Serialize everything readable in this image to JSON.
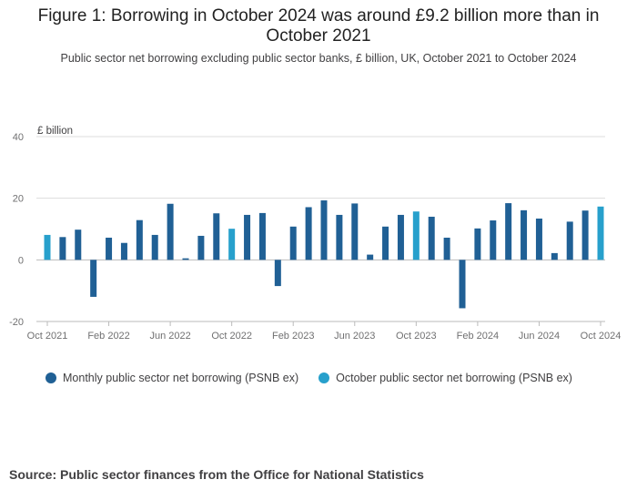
{
  "title": "Figure 1: Borrowing in October 2024 was around £9.2 billion more than in October 2021",
  "subtitle": "Public sector net borrowing excluding public sector banks, £ billion, UK, October 2021 to October 2024",
  "source": "Source: Public sector finances from the Office for National Statistics",
  "colors": {
    "monthly": "#206095",
    "october": "#27a0cc",
    "grid": "#dddddd",
    "axis": "#bbbbbb"
  },
  "chart_data": {
    "type": "bar",
    "ylabel": "£ billion",
    "ylim": [
      -20,
      40
    ],
    "yticks": [
      "-20",
      "0",
      "20",
      "40"
    ],
    "xticks": [
      {
        "label": "Oct 2021",
        "index": 0
      },
      {
        "label": "Feb 2022",
        "index": 4
      },
      {
        "label": "Jun 2022",
        "index": 8
      },
      {
        "label": "Oct 2022",
        "index": 12
      },
      {
        "label": "Feb 2023",
        "index": 16
      },
      {
        "label": "Jun 2023",
        "index": 20
      },
      {
        "label": "Oct 2023",
        "index": 24
      },
      {
        "label": "Feb 2024",
        "index": 28
      },
      {
        "label": "Jun 2024",
        "index": 32
      },
      {
        "label": "Oct 2024",
        "index": 36
      }
    ],
    "categories": [
      "Oct 2021",
      "Nov 2021",
      "Dec 2021",
      "Jan 2022",
      "Feb 2022",
      "Mar 2022",
      "Apr 2022",
      "May 2022",
      "Jun 2022",
      "Jul 2022",
      "Aug 2022",
      "Sep 2022",
      "Oct 2022",
      "Nov 2022",
      "Dec 2022",
      "Jan 2023",
      "Feb 2023",
      "Mar 2023",
      "Apr 2023",
      "May 2023",
      "Jun 2023",
      "Jul 2023",
      "Aug 2023",
      "Sep 2023",
      "Oct 2023",
      "Nov 2023",
      "Dec 2023",
      "Jan 2024",
      "Feb 2024",
      "Mar 2024",
      "Apr 2024",
      "May 2024",
      "Jun 2024",
      "Jul 2024",
      "Aug 2024",
      "Sep 2024",
      "Oct 2024"
    ],
    "series": [
      {
        "name": "Monthly public sector net borrowing (PSNB ex)"
      },
      {
        "name": "October public sector net borrowing (PSNB ex)"
      }
    ],
    "values": [
      8.1,
      7.4,
      9.8,
      -12.0,
      7.2,
      5.5,
      12.9,
      8.1,
      18.2,
      0.5,
      7.8,
      15.1,
      10.1,
      14.6,
      15.2,
      -8.5,
      10.8,
      17.1,
      19.3,
      14.6,
      18.3,
      1.7,
      10.8,
      14.6,
      15.7,
      14.0,
      7.2,
      -15.7,
      10.2,
      12.8,
      18.4,
      16.1,
      13.4,
      2.2,
      12.4,
      16.0,
      17.3
    ],
    "october_indices": [
      0,
      12,
      24,
      36
    ]
  }
}
